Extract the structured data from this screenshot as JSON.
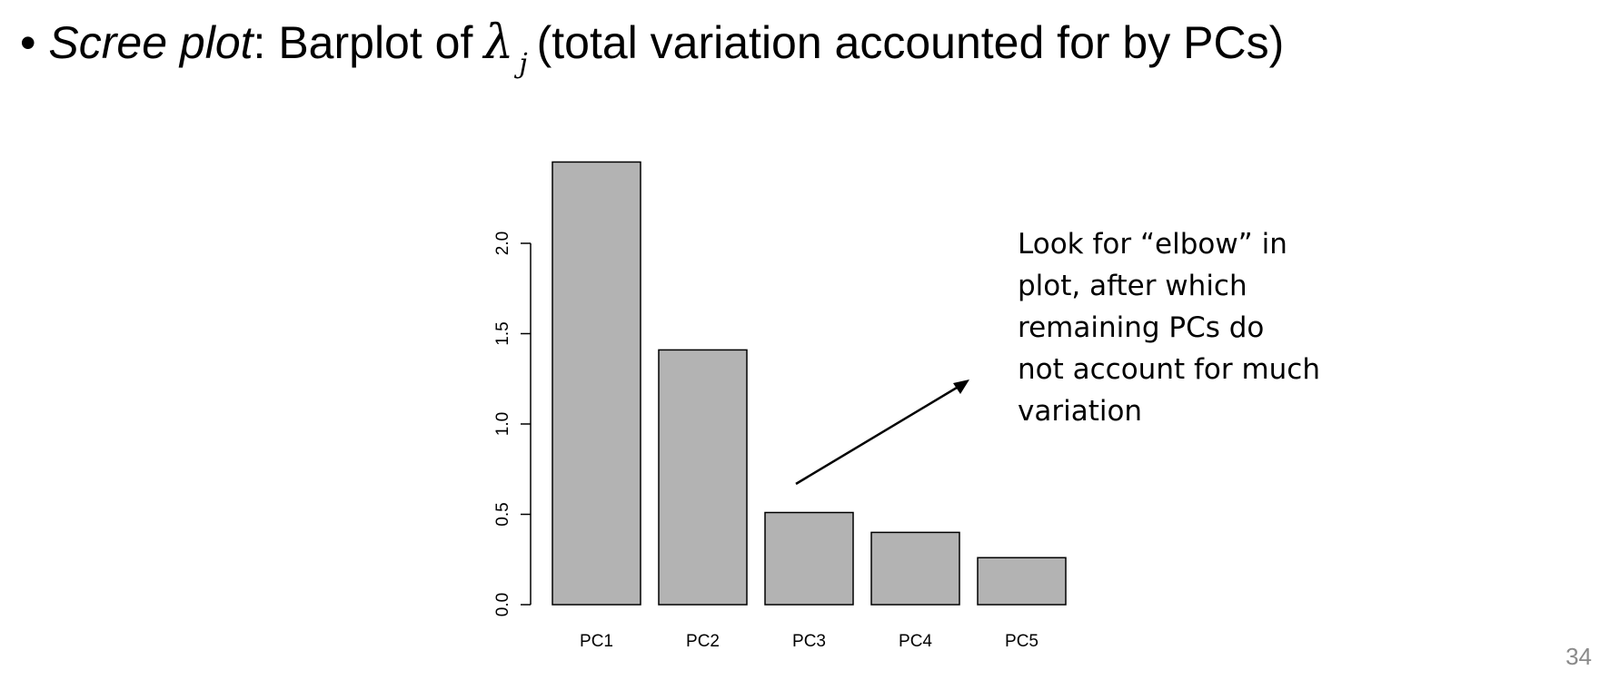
{
  "slide": {
    "bullet": "•",
    "heading_italic": "Scree plot",
    "heading_part1": ": Barplot of",
    "lambda": "λ",
    "lambda_sub": "j",
    "heading_part2": "(total variation accounted for by PCs)",
    "annotation_lines": [
      "Look for “elbow” in",
      "plot, after which",
      "remaining PCs do",
      "not account for much",
      "variation"
    ],
    "page_number": "34"
  },
  "chart_data": {
    "type": "bar",
    "categories": [
      "PC1",
      "PC2",
      "PC3",
      "PC4",
      "PC5"
    ],
    "values": [
      2.45,
      1.41,
      0.51,
      0.4,
      0.26
    ],
    "yticks": [
      "0.0",
      "0.5",
      "1.0",
      "1.5",
      "2.0"
    ],
    "ylim": [
      0,
      2.45
    ],
    "bar_color": "#b3b3b3",
    "grid": false,
    "title": "",
    "xlabel": "",
    "ylabel": ""
  }
}
